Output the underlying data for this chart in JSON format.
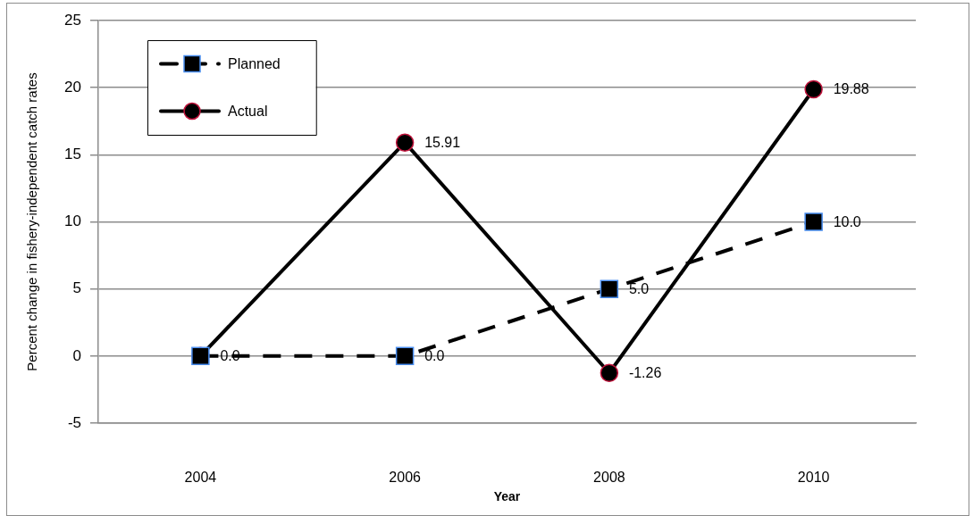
{
  "chart_data": {
    "type": "line",
    "xlabel": "Year",
    "ylabel": "Percent change in fishery-independent catch rates",
    "categories": [
      "2004",
      "2006",
      "2008",
      "2010"
    ],
    "ylim": [
      -5,
      25
    ],
    "yticks": [
      -5,
      0,
      5,
      10,
      15,
      20,
      25
    ],
    "grid": "y",
    "legend": "top left",
    "series": [
      {
        "name": "Planned",
        "color": "#000000",
        "values": [
          0,
          0,
          5,
          10
        ],
        "marker": "square",
        "line_style": "dashed",
        "value_labels": [
          "0.0",
          "0.0",
          "5.0",
          "10.0"
        ]
      },
      {
        "name": "Actual",
        "color": "#000000",
        "values": [
          0,
          15.91,
          -1.26,
          19.88
        ],
        "marker": "circle",
        "line_style": "solid",
        "value_labels": [
          null,
          "15.91",
          "-1.26",
          "19.88"
        ]
      }
    ]
  }
}
